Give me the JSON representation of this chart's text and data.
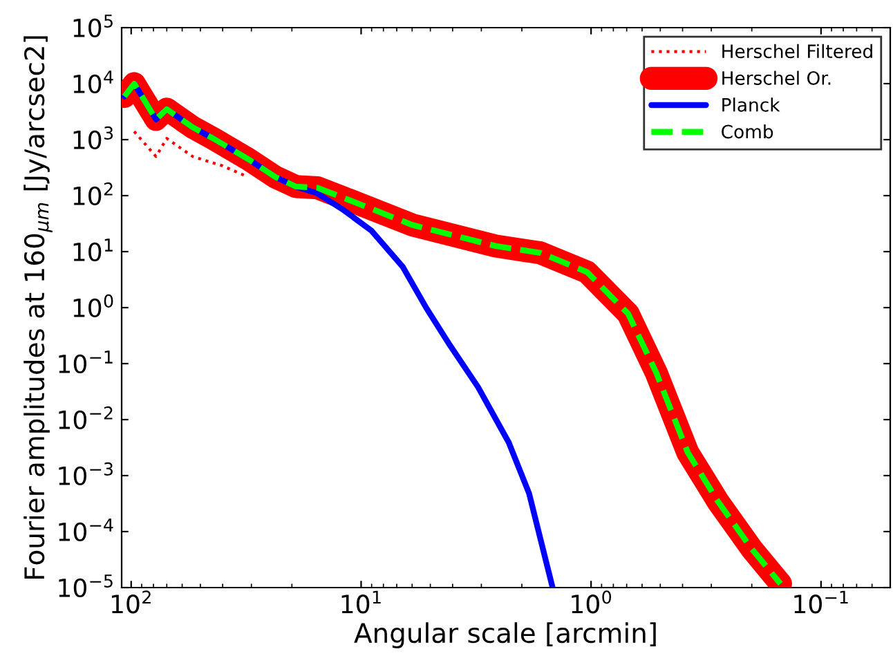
{
  "chart_data": {
    "type": "line",
    "xlabel": "Angular scale [arcmin]",
    "ylabel": "Fourier amplitudes at 160$_{μm}$ [Jy/arcsec2]",
    "log": "xy",
    "grid": false,
    "legend": "top right",
    "xlim": [
      110,
      0.05
    ],
    "ylim": [
      1e-05,
      100000.0
    ],
    "xticks": [
      {
        "value": 100,
        "label": "10$^{2}$"
      },
      {
        "value": 10,
        "label": "10$^{1}$"
      },
      {
        "value": 1,
        "label": "10$^{0}$"
      },
      {
        "value": 0.1,
        "label": "10$^{−1}$"
      }
    ],
    "yticks": [
      {
        "value": 1e-05,
        "label": "10$^{−5}$"
      },
      {
        "value": 0.0001,
        "label": "10$^{−4}$"
      },
      {
        "value": 0.001,
        "label": "10$^{−3}$"
      },
      {
        "value": 0.01,
        "label": "10$^{−2}$"
      },
      {
        "value": 0.1,
        "label": "10$^{−1}$"
      },
      {
        "value": 1,
        "label": "10$^{0}$"
      },
      {
        "value": 10,
        "label": "10$^{1}$"
      },
      {
        "value": 100,
        "label": "10$^{2}$"
      },
      {
        "value": 1000,
        "label": "10$^{3}$"
      },
      {
        "value": 10000,
        "label": "10$^{4}$"
      },
      {
        "value": 100000,
        "label": "10$^{5}$"
      }
    ],
    "series": [
      {
        "name": "Herschel Filtered",
        "color": "#ff0000",
        "line_style": "dotted",
        "x": [
          97,
          78,
          70,
          54,
          40,
          31
        ],
        "values": [
          1400,
          500,
          1050,
          500,
          340,
          215
        ]
      },
      {
        "name": "Herschel Or.",
        "color": "#ff0000",
        "line_style": "solid",
        "x": [
          107,
          97,
          78,
          70,
          54,
          44,
          31,
          23.6,
          19.2,
          15.5,
          11.9,
          6.0,
          2.6,
          1.66,
          1.04,
          0.69,
          0.52,
          0.38,
          0.28,
          0.2,
          0.15
        ],
        "values": [
          5900,
          10000,
          2300,
          3500,
          1660,
          1050,
          450,
          215,
          145,
          138,
          91,
          30,
          12.6,
          9.5,
          4.3,
          0.78,
          0.068,
          0.0026,
          0.00034,
          4.9e-05,
          1.17e-05
        ]
      },
      {
        "name": "Planck",
        "color": "#0000ff",
        "line_style": "solid",
        "x": [
          107,
          97,
          78,
          70,
          54,
          44,
          31,
          23.6,
          19.2,
          15.5,
          11.9,
          9.0,
          6.6,
          5.2,
          4.1,
          3.1,
          2.28,
          1.86,
          1.47
        ],
        "values": [
          5900,
          10000,
          2300,
          3500,
          1660,
          1050,
          450,
          215,
          145,
          110,
          55,
          23.5,
          5.4,
          0.98,
          0.21,
          0.038,
          0.0039,
          0.00048,
          1e-05
        ]
      },
      {
        "name": "Comb",
        "color": "#00ff00",
        "line_style": "dashed",
        "x": [
          107,
          97,
          78,
          70,
          54,
          44,
          31,
          23.6,
          19.2,
          15.5,
          11.9,
          6.0,
          2.6,
          1.66,
          1.04,
          0.69,
          0.52,
          0.38,
          0.28,
          0.2,
          0.15
        ],
        "values": [
          5900,
          10000,
          2300,
          3500,
          1660,
          1050,
          450,
          215,
          145,
          138,
          91,
          30,
          12.6,
          9.5,
          4.3,
          0.78,
          0.068,
          0.0026,
          0.00034,
          4.9e-05,
          1.17e-05
        ]
      }
    ]
  }
}
